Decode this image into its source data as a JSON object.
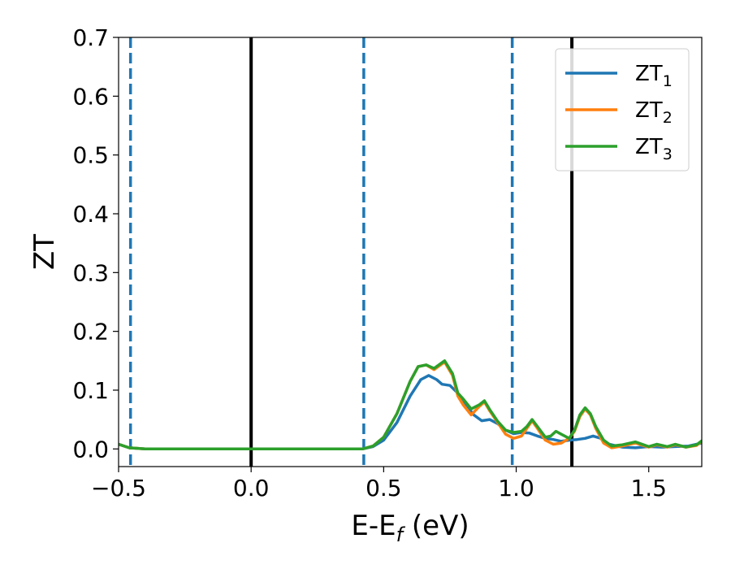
{
  "chart_data": {
    "type": "line",
    "title": "",
    "xlabel": "E-E",
    "xlabel_sub": "f",
    "xlabel_unit": " (eV)",
    "ylabel": "ZT",
    "xlim": [
      -0.5,
      1.7
    ],
    "ylim": [
      -0.03,
      0.7
    ],
    "xticks": [
      -0.5,
      0.0,
      0.5,
      1.0,
      1.5
    ],
    "xtick_labels": [
      "−0.5",
      "0.0",
      "0.5",
      "1.0",
      "1.5"
    ],
    "yticks": [
      0.0,
      0.1,
      0.2,
      0.3,
      0.4,
      0.5,
      0.6,
      0.7
    ],
    "ytick_labels": [
      "0.0",
      "0.1",
      "0.2",
      "0.3",
      "0.4",
      "0.5",
      "0.6",
      "0.7"
    ],
    "grid": false,
    "legend_position": "top-right",
    "vlines": [
      {
        "x": -0.455,
        "style": "dashed",
        "color": "#1f77b4"
      },
      {
        "x": 0.0,
        "style": "solid",
        "color": "#000000"
      },
      {
        "x": 0.425,
        "style": "dashed",
        "color": "#1f77b4"
      },
      {
        "x": 0.985,
        "style": "dashed",
        "color": "#1f77b4"
      },
      {
        "x": 1.21,
        "style": "solid",
        "color": "#000000"
      }
    ],
    "series": [
      {
        "name": "ZT",
        "name_sub": "1",
        "color": "#1f77b4",
        "points": [
          [
            -0.5,
            0.008
          ],
          [
            -0.46,
            0.002
          ],
          [
            -0.4,
            0.0
          ],
          [
            0.0,
            0.0
          ],
          [
            0.42,
            0.0
          ],
          [
            0.46,
            0.004
          ],
          [
            0.5,
            0.015
          ],
          [
            0.55,
            0.045
          ],
          [
            0.6,
            0.09
          ],
          [
            0.64,
            0.118
          ],
          [
            0.67,
            0.125
          ],
          [
            0.7,
            0.118
          ],
          [
            0.72,
            0.11
          ],
          [
            0.75,
            0.108
          ],
          [
            0.78,
            0.095
          ],
          [
            0.81,
            0.075
          ],
          [
            0.84,
            0.058
          ],
          [
            0.87,
            0.048
          ],
          [
            0.9,
            0.05
          ],
          [
            0.93,
            0.043
          ],
          [
            0.96,
            0.032
          ],
          [
            0.99,
            0.026
          ],
          [
            1.02,
            0.028
          ],
          [
            1.05,
            0.027
          ],
          [
            1.08,
            0.022
          ],
          [
            1.11,
            0.018
          ],
          [
            1.14,
            0.016
          ],
          [
            1.17,
            0.013
          ],
          [
            1.2,
            0.015
          ],
          [
            1.23,
            0.016
          ],
          [
            1.26,
            0.018
          ],
          [
            1.29,
            0.022
          ],
          [
            1.32,
            0.018
          ],
          [
            1.35,
            0.008
          ],
          [
            1.4,
            0.003
          ],
          [
            1.45,
            0.002
          ],
          [
            1.5,
            0.004
          ],
          [
            1.55,
            0.003
          ],
          [
            1.6,
            0.004
          ],
          [
            1.65,
            0.005
          ],
          [
            1.7,
            0.01
          ]
        ]
      },
      {
        "name": "ZT",
        "name_sub": "2",
        "color": "#ff7f0e",
        "points": [
          [
            -0.5,
            0.008
          ],
          [
            -0.46,
            0.002
          ],
          [
            -0.4,
            0.0
          ],
          [
            0.0,
            0.0
          ],
          [
            0.42,
            0.0
          ],
          [
            0.46,
            0.005
          ],
          [
            0.5,
            0.02
          ],
          [
            0.55,
            0.06
          ],
          [
            0.6,
            0.115
          ],
          [
            0.63,
            0.14
          ],
          [
            0.66,
            0.143
          ],
          [
            0.69,
            0.135
          ],
          [
            0.73,
            0.148
          ],
          [
            0.76,
            0.125
          ],
          [
            0.78,
            0.09
          ],
          [
            0.8,
            0.075
          ],
          [
            0.83,
            0.058
          ],
          [
            0.86,
            0.072
          ],
          [
            0.88,
            0.08
          ],
          [
            0.9,
            0.065
          ],
          [
            0.93,
            0.045
          ],
          [
            0.96,
            0.025
          ],
          [
            0.99,
            0.018
          ],
          [
            1.02,
            0.022
          ],
          [
            1.04,
            0.035
          ],
          [
            1.06,
            0.048
          ],
          [
            1.08,
            0.035
          ],
          [
            1.11,
            0.015
          ],
          [
            1.14,
            0.008
          ],
          [
            1.17,
            0.01
          ],
          [
            1.2,
            0.018
          ],
          [
            1.22,
            0.03
          ],
          [
            1.24,
            0.055
          ],
          [
            1.26,
            0.068
          ],
          [
            1.28,
            0.058
          ],
          [
            1.3,
            0.035
          ],
          [
            1.33,
            0.01
          ],
          [
            1.36,
            0.002
          ],
          [
            1.4,
            0.005
          ],
          [
            1.45,
            0.01
          ],
          [
            1.5,
            0.003
          ],
          [
            1.53,
            0.007
          ],
          [
            1.57,
            0.003
          ],
          [
            1.6,
            0.007
          ],
          [
            1.64,
            0.003
          ],
          [
            1.68,
            0.006
          ],
          [
            1.7,
            0.013
          ]
        ]
      },
      {
        "name": "ZT",
        "name_sub": "3",
        "color": "#2ca02c",
        "points": [
          [
            -0.5,
            0.008
          ],
          [
            -0.46,
            0.002
          ],
          [
            -0.4,
            0.0
          ],
          [
            0.0,
            0.0
          ],
          [
            0.42,
            0.0
          ],
          [
            0.46,
            0.005
          ],
          [
            0.5,
            0.02
          ],
          [
            0.55,
            0.06
          ],
          [
            0.6,
            0.115
          ],
          [
            0.63,
            0.14
          ],
          [
            0.66,
            0.143
          ],
          [
            0.69,
            0.137
          ],
          [
            0.73,
            0.15
          ],
          [
            0.76,
            0.128
          ],
          [
            0.78,
            0.095
          ],
          [
            0.8,
            0.085
          ],
          [
            0.83,
            0.068
          ],
          [
            0.86,
            0.075
          ],
          [
            0.88,
            0.082
          ],
          [
            0.9,
            0.067
          ],
          [
            0.93,
            0.047
          ],
          [
            0.96,
            0.032
          ],
          [
            0.99,
            0.028
          ],
          [
            1.02,
            0.03
          ],
          [
            1.04,
            0.038
          ],
          [
            1.06,
            0.05
          ],
          [
            1.08,
            0.038
          ],
          [
            1.11,
            0.02
          ],
          [
            1.13,
            0.022
          ],
          [
            1.15,
            0.03
          ],
          [
            1.17,
            0.025
          ],
          [
            1.2,
            0.018
          ],
          [
            1.22,
            0.032
          ],
          [
            1.24,
            0.058
          ],
          [
            1.26,
            0.07
          ],
          [
            1.28,
            0.06
          ],
          [
            1.3,
            0.038
          ],
          [
            1.33,
            0.015
          ],
          [
            1.36,
            0.005
          ],
          [
            1.4,
            0.007
          ],
          [
            1.45,
            0.012
          ],
          [
            1.5,
            0.004
          ],
          [
            1.53,
            0.008
          ],
          [
            1.57,
            0.004
          ],
          [
            1.6,
            0.008
          ],
          [
            1.64,
            0.003
          ],
          [
            1.68,
            0.007
          ],
          [
            1.7,
            0.014
          ]
        ]
      }
    ]
  }
}
